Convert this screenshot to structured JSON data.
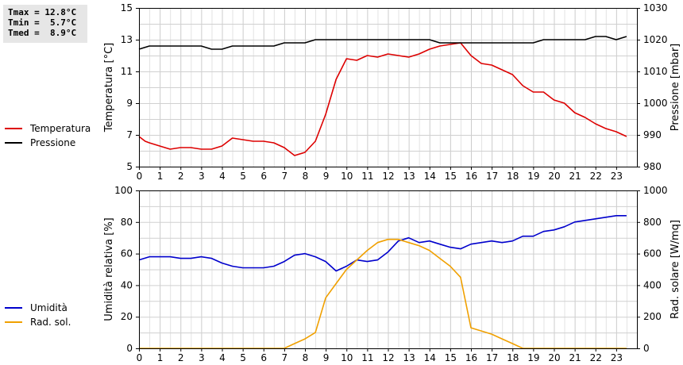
{
  "stats": {
    "tmax": "Tmax = 12.8°C",
    "tmin": "Tmin =  5.7°C",
    "tmed": "Tmed =  8.9°C"
  },
  "legend_top": [
    {
      "label": "Temperatura",
      "color": "#dd0000"
    },
    {
      "label": "Pressione",
      "color": "#000000"
    }
  ],
  "legend_bottom": [
    {
      "label": "Umidità",
      "color": "#0000cc"
    },
    {
      "label": "Rad. sol.",
      "color": "#f0a000"
    }
  ],
  "chart_data": [
    {
      "type": "line",
      "xlabel": "",
      "xlim": [
        0,
        24
      ],
      "xticks": [
        0,
        1,
        2,
        3,
        4,
        5,
        6,
        7,
        8,
        9,
        10,
        11,
        12,
        13,
        14,
        15,
        16,
        17,
        18,
        19,
        20,
        21,
        22,
        23
      ],
      "ylabel_left": "Temperatura [°C]",
      "ylim_left": [
        5,
        15
      ],
      "yticks_left": [
        5,
        7,
        9,
        11,
        13,
        15
      ],
      "ylabel_right": "Pressione [mbar]",
      "ylim_right": [
        980,
        1030
      ],
      "yticks_right": [
        980,
        990,
        1000,
        1010,
        1020,
        1030
      ],
      "grid": true,
      "series": [
        {
          "name": "Temperatura",
          "axis": "left",
          "color": "#dd0000",
          "x": [
            0,
            0.3,
            0.5,
            1,
            1.5,
            2,
            2.5,
            3,
            3.5,
            4,
            4.5,
            5,
            5.5,
            6,
            6.5,
            7,
            7.5,
            8,
            8.5,
            9,
            9.5,
            10,
            10.5,
            11,
            11.5,
            12,
            12.5,
            13,
            13.5,
            14,
            14.5,
            15,
            15.5,
            16,
            16.5,
            17,
            17.5,
            18,
            18.5,
            19,
            19.5,
            20,
            20.5,
            21,
            21.5,
            22,
            22.5,
            23,
            23.5
          ],
          "y": [
            6.9,
            6.6,
            6.5,
            6.3,
            6.1,
            6.2,
            6.2,
            6.1,
            6.1,
            6.3,
            6.8,
            6.7,
            6.6,
            6.6,
            6.5,
            6.2,
            5.7,
            5.9,
            6.6,
            8.3,
            10.5,
            11.8,
            11.7,
            12.0,
            11.9,
            12.1,
            12.0,
            11.9,
            12.1,
            12.4,
            12.6,
            12.7,
            12.8,
            12.0,
            11.5,
            11.4,
            11.1,
            10.8,
            10.1,
            9.7,
            9.7,
            9.2,
            9.0,
            8.4,
            8.1,
            7.7,
            7.4,
            7.2,
            6.9
          ]
        },
        {
          "name": "Pressione",
          "axis": "right",
          "color": "#000000",
          "x": [
            0,
            0.5,
            1,
            1.5,
            2,
            2.5,
            3,
            3.5,
            4,
            4.5,
            5,
            5.5,
            6,
            6.5,
            7,
            7.5,
            8,
            8.5,
            9,
            9.5,
            10,
            10.5,
            11,
            11.5,
            12,
            12.5,
            13,
            13.5,
            14,
            14.5,
            15,
            15.5,
            16,
            16.5,
            17,
            17.5,
            18,
            18.5,
            19,
            19.5,
            20,
            20.5,
            21,
            21.5,
            22,
            22.5,
            23,
            23.5
          ],
          "y": [
            1017,
            1018,
            1018,
            1018,
            1018,
            1018,
            1018,
            1017,
            1017,
            1018,
            1018,
            1018,
            1018,
            1018,
            1019,
            1019,
            1019,
            1020,
            1020,
            1020,
            1020,
            1020,
            1020,
            1020,
            1020,
            1020,
            1020,
            1020,
            1020,
            1019,
            1019,
            1019,
            1019,
            1019,
            1019,
            1019,
            1019,
            1019,
            1019,
            1020,
            1020,
            1020,
            1020,
            1020,
            1021,
            1021,
            1020,
            1021
          ]
        }
      ]
    },
    {
      "type": "line",
      "xlabel": "",
      "xlim": [
        0,
        24
      ],
      "xticks": [
        0,
        1,
        2,
        3,
        4,
        5,
        6,
        7,
        8,
        9,
        10,
        11,
        12,
        13,
        14,
        15,
        16,
        17,
        18,
        19,
        20,
        21,
        22,
        23
      ],
      "ylabel_left": "Umidità relativa [%]",
      "ylim_left": [
        0,
        100
      ],
      "yticks_left": [
        0,
        20,
        40,
        60,
        80,
        100
      ],
      "ylabel_right": "Rad. solare [W/mq]",
      "ylim_right": [
        0,
        1000
      ],
      "yticks_right": [
        0,
        200,
        400,
        600,
        800,
        1000
      ],
      "grid": true,
      "series": [
        {
          "name": "Umidità",
          "axis": "left",
          "color": "#0000cc",
          "x": [
            0,
            0.5,
            1,
            1.5,
            2,
            2.5,
            3,
            3.5,
            4,
            4.5,
            5,
            5.5,
            6,
            6.5,
            7,
            7.5,
            8,
            8.5,
            9,
            9.5,
            10,
            10.5,
            11,
            11.5,
            12,
            12.5,
            13,
            13.5,
            14,
            14.5,
            15,
            15.5,
            16,
            16.5,
            17,
            17.5,
            18,
            18.5,
            19,
            19.5,
            20,
            20.5,
            21,
            21.5,
            22,
            22.5,
            23,
            23.5
          ],
          "y": [
            56,
            58,
            58,
            58,
            57,
            57,
            58,
            57,
            54,
            52,
            51,
            51,
            51,
            52,
            55,
            59,
            60,
            58,
            55,
            49,
            52,
            56,
            55,
            56,
            61,
            68,
            70,
            67,
            68,
            66,
            64,
            63,
            66,
            67,
            68,
            67,
            68,
            71,
            71,
            74,
            75,
            77,
            80,
            81,
            82,
            83,
            84,
            84
          ]
        },
        {
          "name": "Rad. sol.",
          "axis": "right",
          "color": "#f0a000",
          "x": [
            0,
            1,
            2,
            3,
            4,
            5,
            6,
            7,
            7.5,
            8,
            8.5,
            9,
            9.5,
            10,
            10.5,
            11,
            11.5,
            12,
            12.5,
            13,
            13.5,
            14,
            14.5,
            15,
            15.5,
            16,
            16.5,
            17,
            17.5,
            18,
            18.5,
            19,
            20,
            21,
            22,
            23,
            23.5
          ],
          "y": [
            0,
            0,
            0,
            0,
            0,
            0,
            0,
            0,
            30,
            60,
            100,
            320,
            410,
            500,
            560,
            620,
            670,
            690,
            690,
            670,
            650,
            620,
            570,
            520,
            450,
            130,
            110,
            90,
            60,
            30,
            0,
            0,
            0,
            0,
            0,
            0,
            0
          ]
        }
      ]
    }
  ]
}
